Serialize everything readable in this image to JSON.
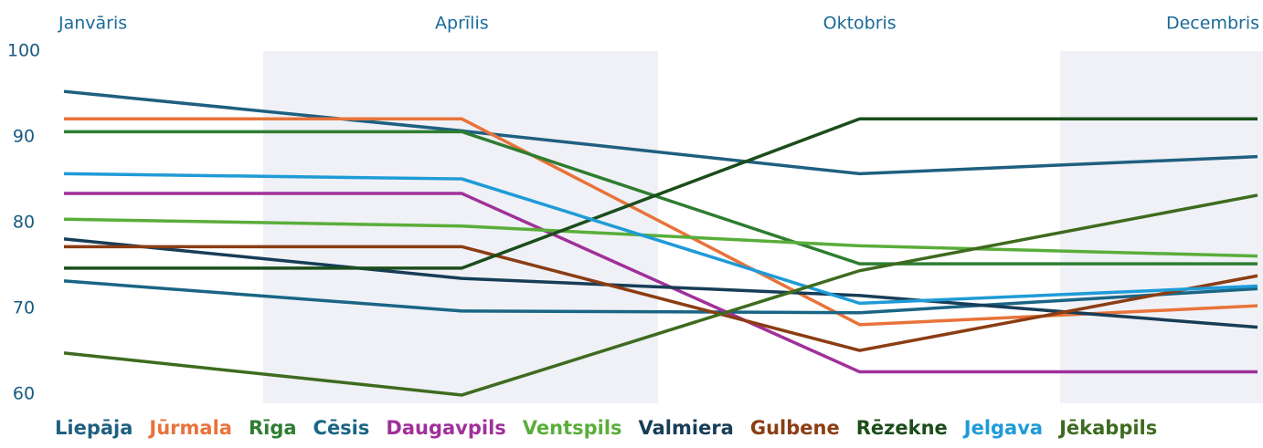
{
  "chart_data": {
    "type": "line",
    "categories": [
      "Janvāris",
      "Aprīlis",
      "Oktobris",
      "Decembris"
    ],
    "ylim": [
      60,
      100
    ],
    "yticks": [
      60,
      70,
      80,
      90,
      100
    ],
    "series": [
      {
        "name": "Liepāja",
        "color": "#1f5f80",
        "values": [
          95.3,
          90.7,
          85.7,
          87.7
        ]
      },
      {
        "name": "Jūrmala",
        "color": "#e8733a",
        "values": [
          92.1,
          92.1,
          68.1,
          70.3
        ]
      },
      {
        "name": "Rīga",
        "color": "#2e7d32",
        "values": [
          90.6,
          90.6,
          75.2,
          75.2
        ]
      },
      {
        "name": "Cēsis",
        "color": "#1a6585",
        "values": [
          73.2,
          69.7,
          69.5,
          72.3
        ]
      },
      {
        "name": "Daugavpils",
        "color": "#a0309a",
        "values": [
          83.4,
          83.4,
          62.6,
          62.6
        ]
      },
      {
        "name": "Ventspils",
        "color": "#5aad3a",
        "values": [
          80.4,
          79.6,
          77.3,
          76.1
        ]
      },
      {
        "name": "Valmiera",
        "color": "#173d57",
        "values": [
          78.1,
          73.5,
          71.5,
          67.8
        ]
      },
      {
        "name": "Gulbene",
        "color": "#8b3d13",
        "values": [
          77.2,
          77.2,
          65.1,
          73.8
        ]
      },
      {
        "name": "Rēzekne",
        "color": "#1b4d1b",
        "values": [
          74.7,
          74.7,
          92.1,
          92.1
        ]
      },
      {
        "name": "Jelgava",
        "color": "#1f9bd7",
        "values": [
          85.7,
          85.1,
          70.6,
          72.6
        ]
      },
      {
        "name": "Jēkabpils",
        "color": "#3e6b1f",
        "values": [
          64.8,
          59.9,
          74.4,
          83.2
        ]
      }
    ]
  }
}
